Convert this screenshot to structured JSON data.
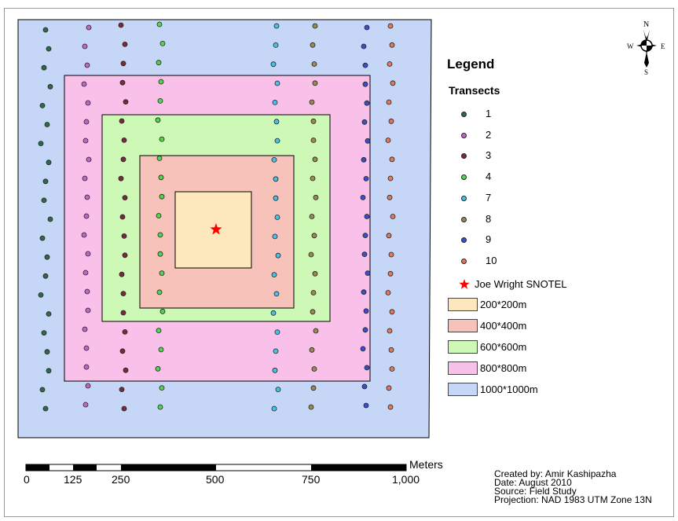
{
  "legend": {
    "title": "Legend",
    "section_title": "Transects",
    "transects": [
      {
        "label": "1",
        "color": "#2e6b4a"
      },
      {
        "label": "2",
        "color": "#c366c9"
      },
      {
        "label": "3",
        "color": "#7a2a3a"
      },
      {
        "label": "4",
        "color": "#52d64f"
      },
      {
        "label": "7",
        "color": "#45c4e8"
      },
      {
        "label": "8",
        "color": "#9a8a52"
      },
      {
        "label": "9",
        "color": "#3a4fcf"
      },
      {
        "label": "10",
        "color": "#e07a5f"
      }
    ],
    "station": {
      "label": "Joe Wright SNOTEL",
      "color": "#ff0000"
    },
    "zones": [
      {
        "label": "200*200m",
        "color": "#fde7bd"
      },
      {
        "label": "400*400m",
        "color": "#f7c2b9"
      },
      {
        "label": "600*600m",
        "color": "#cdf8b5"
      },
      {
        "label": "800*800m",
        "color": "#f9c0ea"
      },
      {
        "label": "1000*1000m",
        "color": "#c6d6f7"
      }
    ]
  },
  "scale_bar": {
    "unit": "Meters",
    "labels": [
      "0",
      "125",
      "250",
      "500",
      "750",
      "1,000"
    ]
  },
  "north_arrow": {
    "n": "N",
    "s": "S",
    "e": "E",
    "w": "W"
  },
  "credits": {
    "created_by": "Created by: Amir Kashipazha",
    "date": "Date: August 2010",
    "source": "Source: Field Study",
    "projection": "Projection: NAD 1983 UTM Zone 13N"
  }
}
